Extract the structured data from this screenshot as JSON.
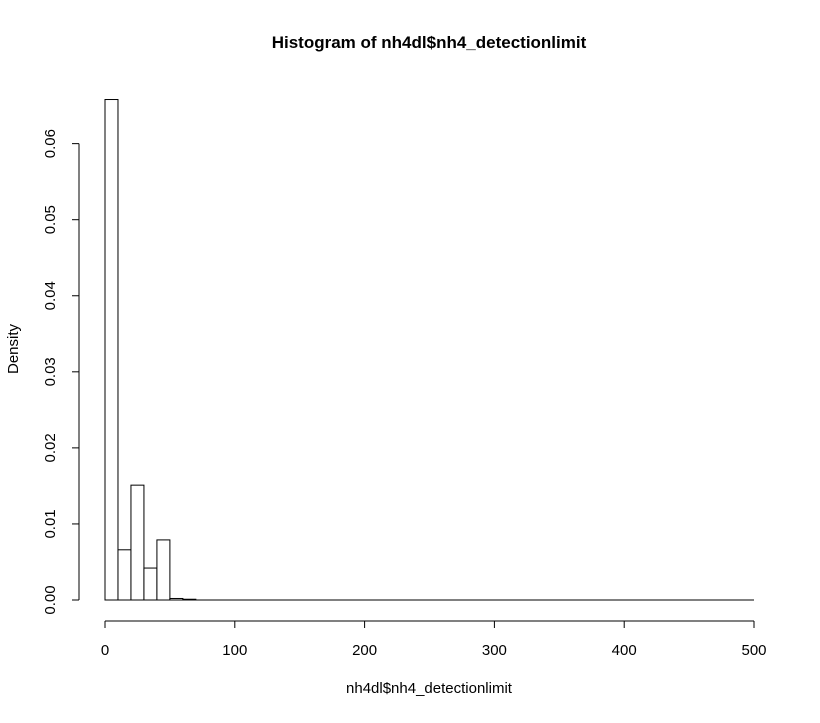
{
  "chart_data": {
    "type": "bar",
    "subtype": "histogram",
    "title": "Histogram of nh4dl$nh4_detectionlimit",
    "xlabel": "nh4dl$nh4_detectionlimit",
    "ylabel": "Density",
    "xlim": [
      0,
      500
    ],
    "ylim": [
      0,
      0.066
    ],
    "bin_width": 10,
    "bin_starts": [
      0,
      10,
      20,
      30,
      40,
      50,
      60,
      70,
      80,
      90,
      100,
      110,
      120,
      130,
      140,
      150,
      160,
      170,
      180,
      190,
      200,
      210,
      220,
      230,
      240,
      250,
      260,
      270,
      280,
      290,
      300,
      310,
      320,
      330,
      340,
      350,
      360,
      370,
      380,
      390,
      400,
      410,
      420,
      430,
      440,
      450,
      460,
      470,
      480,
      490
    ],
    "values": [
      0.0658,
      0.0066,
      0.0151,
      0.0042,
      0.0079,
      0.0002,
      0.0001,
      0,
      0,
      0,
      0,
      0,
      0,
      0,
      0,
      0,
      0,
      0,
      0,
      0,
      0,
      0,
      0,
      0,
      0,
      0,
      0,
      0,
      0,
      0,
      0,
      0,
      0,
      0,
      0,
      0,
      0,
      0,
      0,
      0,
      0,
      0,
      0,
      0,
      0,
      0,
      0,
      0,
      0,
      0
    ],
    "x_ticks": [
      0,
      100,
      200,
      300,
      400,
      500
    ],
    "x_tick_labels": [
      "0",
      "100",
      "200",
      "300",
      "400",
      "500"
    ],
    "y_ticks": [
      0,
      0.01,
      0.02,
      0.03,
      0.04,
      0.05,
      0.06
    ],
    "y_tick_labels": [
      "0.00",
      "0.01",
      "0.02",
      "0.03",
      "0.04",
      "0.05",
      "0.06"
    ],
    "grid": false,
    "legend": "none"
  }
}
